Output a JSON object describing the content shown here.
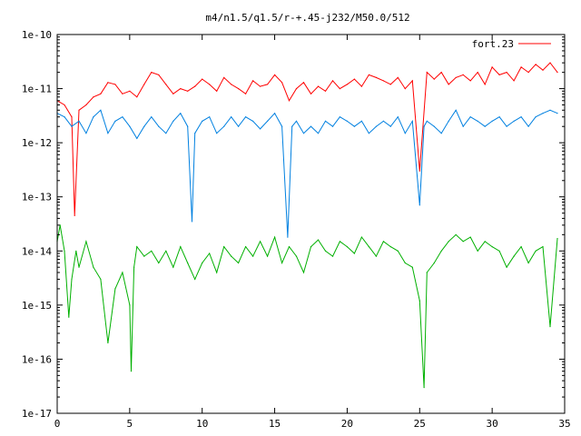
{
  "chart_data": {
    "type": "line",
    "title": "m4/n1.5/q1.5/r-+.45-j232/M50.0/512",
    "xlim": [
      0,
      35
    ],
    "ylim": [
      1e-17,
      1e-10
    ],
    "yscale": "log",
    "grid": false,
    "legend_position": "top-right",
    "x_ticks": [
      0,
      5,
      10,
      15,
      20,
      25,
      30,
      35
    ],
    "x_tick_labels": [
      "0",
      "5",
      "10",
      "15",
      "20",
      "25",
      "30",
      "35"
    ],
    "y_ticks": [
      1e-10,
      1e-11,
      1e-12,
      1e-13,
      1e-14,
      1e-15,
      1e-16,
      1e-17
    ],
    "y_tick_labels": [
      "1e-10",
      "1e-11",
      "1e-12",
      "1e-13",
      "1e-14",
      "1e-15",
      "1e-16",
      "1e-17"
    ],
    "series": [
      {
        "name": "fort.23",
        "color": "#ff0000",
        "x": [
          0,
          0.5,
          1,
          1.2,
          1.5,
          2,
          2.5,
          3,
          3.5,
          4,
          4.5,
          5,
          5.5,
          6,
          6.5,
          7,
          7.5,
          8,
          8.5,
          9,
          9.5,
          10,
          10.5,
          11,
          11.5,
          12,
          12.5,
          13,
          13.5,
          14,
          14.5,
          15,
          15.5,
          16,
          16.5,
          17,
          17.5,
          18,
          18.5,
          19,
          19.5,
          20,
          20.5,
          21,
          21.5,
          22,
          22.5,
          23,
          23.5,
          24,
          24.5,
          25,
          25.5,
          26,
          26.5,
          27,
          27.5,
          28,
          28.5,
          29,
          29.5,
          30,
          30.5,
          31,
          31.5,
          32,
          32.5,
          33,
          33.5,
          34,
          34.5
        ],
        "values": [
          6e-12,
          5e-12,
          3e-12,
          4.5e-14,
          4e-12,
          5e-12,
          7e-12,
          8e-12,
          1.3e-11,
          1.2e-11,
          8e-12,
          9e-12,
          7e-12,
          1.2e-11,
          2e-11,
          1.8e-11,
          1.2e-11,
          8e-12,
          1e-11,
          9e-12,
          1.1e-11,
          1.5e-11,
          1.2e-11,
          9e-12,
          1.6e-11,
          1.2e-11,
          1e-11,
          8e-12,
          1.4e-11,
          1.1e-11,
          1.2e-11,
          1.8e-11,
          1.3e-11,
          6e-12,
          1e-11,
          1.3e-11,
          8e-12,
          1.1e-11,
          9e-12,
          1.4e-11,
          1e-11,
          1.2e-11,
          1.5e-11,
          1.1e-11,
          1.8e-11,
          1.6e-11,
          1.4e-11,
          1.2e-11,
          1.6e-11,
          1e-11,
          1.4e-11,
          3e-13,
          2e-11,
          1.5e-11,
          2e-11,
          1.2e-11,
          1.6e-11,
          1.8e-11,
          1.4e-11,
          2e-11,
          1.2e-11,
          2.5e-11,
          1.8e-11,
          2e-11,
          1.4e-11,
          2.5e-11,
          2e-11,
          2.8e-11,
          2.2e-11,
          3e-11,
          2e-11
        ]
      },
      {
        "name": "",
        "color": "#0080e0",
        "x": [
          0,
          0.5,
          1,
          1.5,
          2,
          2.5,
          3,
          3.5,
          4,
          4.5,
          5,
          5.5,
          6,
          6.5,
          7,
          7.5,
          8,
          8.5,
          9,
          9.3,
          9.5,
          10,
          10.5,
          11,
          11.5,
          12,
          12.5,
          13,
          13.5,
          14,
          14.5,
          15,
          15.5,
          15.9,
          16.2,
          16.5,
          17,
          17.5,
          18,
          18.5,
          19,
          19.5,
          20,
          20.5,
          21,
          21.5,
          22,
          22.5,
          23,
          23.5,
          24,
          24.5,
          25,
          25.3,
          25.5,
          26,
          26.5,
          27,
          27.5,
          28,
          28.5,
          29,
          29.5,
          30,
          30.5,
          31,
          31.5,
          32,
          32.5,
          33,
          33.5,
          34,
          34.5
        ],
        "values": [
          3.5e-12,
          3e-12,
          2e-12,
          2.5e-12,
          1.5e-12,
          3e-12,
          4e-12,
          1.5e-12,
          2.5e-12,
          3e-12,
          2e-12,
          1.2e-12,
          2e-12,
          3e-12,
          2e-12,
          1.5e-12,
          2.5e-12,
          3.5e-12,
          2e-12,
          3.5e-14,
          1.5e-12,
          2.5e-12,
          3e-12,
          1.5e-12,
          2e-12,
          3e-12,
          2e-12,
          3e-12,
          2.5e-12,
          1.8e-12,
          2.5e-12,
          3.5e-12,
          2e-12,
          1.8e-14,
          2e-12,
          2.5e-12,
          1.5e-12,
          2e-12,
          1.5e-12,
          2.5e-12,
          2e-12,
          3e-12,
          2.5e-12,
          2e-12,
          2.5e-12,
          1.5e-12,
          2e-12,
          2.5e-12,
          2e-12,
          3e-12,
          1.5e-12,
          2.5e-12,
          7e-14,
          2e-12,
          2.5e-12,
          2e-12,
          1.5e-12,
          2.5e-12,
          4e-12,
          2e-12,
          3e-12,
          2.5e-12,
          2e-12,
          2.5e-12,
          3e-12,
          2e-12,
          2.5e-12,
          3e-12,
          2e-12,
          3e-12,
          3.5e-12,
          4e-12,
          3.5e-12
        ]
      },
      {
        "name": "",
        "color": "#00b000",
        "x": [
          0,
          0.2,
          0.5,
          0.8,
          1,
          1.3,
          1.5,
          2,
          2.5,
          3,
          3.5,
          4,
          4.5,
          5,
          5.1,
          5.3,
          5.5,
          6,
          6.5,
          7,
          7.5,
          8,
          8.5,
          9,
          9.5,
          10,
          10.5,
          11,
          11.5,
          12,
          12.5,
          13,
          13.5,
          14,
          14.5,
          15,
          15.5,
          16,
          16.5,
          17,
          17.5,
          18,
          18.5,
          19,
          19.5,
          20,
          20.5,
          21,
          21.5,
          22,
          22.5,
          23,
          23.5,
          24,
          24.5,
          25,
          25.3,
          25.5,
          26,
          26.5,
          27,
          27.5,
          28,
          28.5,
          29,
          29.5,
          30,
          30.5,
          31,
          31.5,
          32,
          32.5,
          33,
          33.5,
          34,
          34.5
        ],
        "values": [
          1.5e-14,
          3e-14,
          1e-14,
          6e-16,
          3e-15,
          1e-14,
          5e-15,
          1.5e-14,
          5e-15,
          3e-15,
          2e-16,
          2e-15,
          4e-15,
          1e-15,
          6e-17,
          5e-15,
          1.2e-14,
          8e-15,
          1e-14,
          6e-15,
          1e-14,
          5e-15,
          1.2e-14,
          6e-15,
          3e-15,
          6e-15,
          9e-15,
          4e-15,
          1.2e-14,
          8e-15,
          6e-15,
          1.2e-14,
          8e-15,
          1.5e-14,
          8e-15,
          1.8e-14,
          6e-15,
          1.2e-14,
          8e-15,
          4e-15,
          1.2e-14,
          1.6e-14,
          1e-14,
          8e-15,
          1.5e-14,
          1.2e-14,
          9e-15,
          1.8e-14,
          1.2e-14,
          8e-15,
          1.5e-14,
          1.2e-14,
          1e-14,
          6e-15,
          5e-15,
          1.2e-15,
          3e-17,
          4e-15,
          6e-15,
          1e-14,
          1.5e-14,
          2e-14,
          1.5e-14,
          1.8e-14,
          1e-14,
          1.5e-14,
          1.2e-14,
          1e-14,
          5e-15,
          8e-15,
          1.2e-14,
          6e-15,
          1e-14,
          1.2e-14,
          4e-16,
          1.7e-14
        ]
      }
    ],
    "legend": [
      {
        "label": "fort.23",
        "color": "#ff0000"
      }
    ]
  }
}
